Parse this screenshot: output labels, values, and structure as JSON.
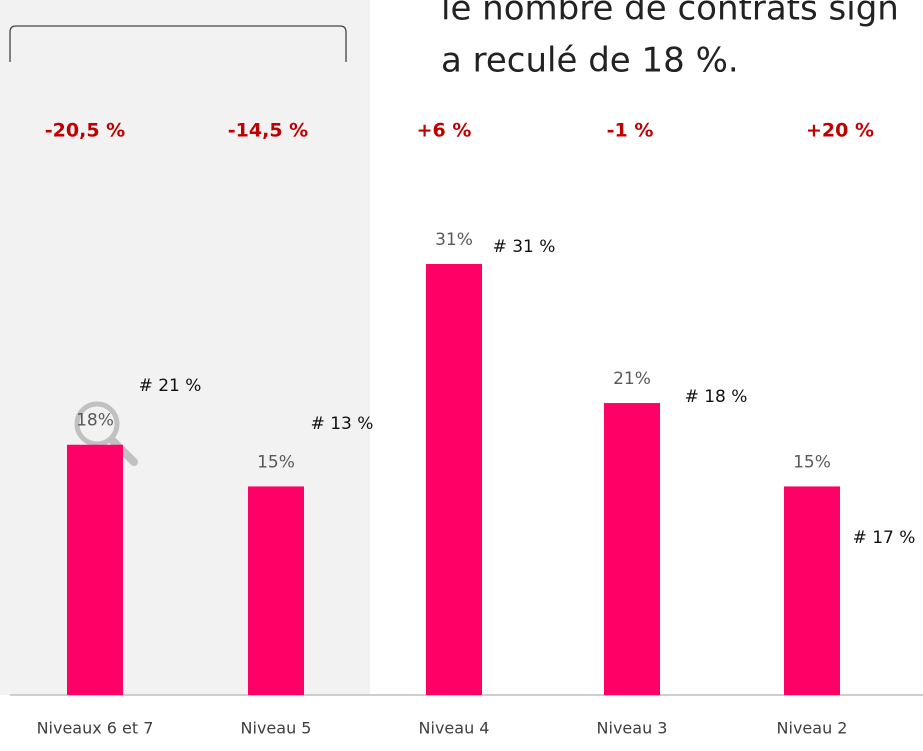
{
  "chart_data": {
    "type": "bar",
    "text_lines": [
      "le nombre de contrats sign",
      "a reculé de 18 %."
    ],
    "categories": [
      "Niveaux 6 et 7",
      "Niveau 5",
      "Niveau 4",
      "Niveau 3",
      "Niveau 2"
    ],
    "values": [
      18,
      15,
      31,
      21,
      15
    ],
    "value_labels": [
      "18%",
      "15%",
      "31%",
      "21%",
      "15%"
    ],
    "color": "#ff0066",
    "changes": [
      "-20,5 %",
      "-14,5 %",
      "+6 %",
      "-1 %",
      "+20 %"
    ],
    "change_color": "#c00000",
    "annotations": [
      "# 21 %",
      "# 13 %",
      "# 31 %",
      "# 18 %",
      "# 17 %"
    ]
  }
}
